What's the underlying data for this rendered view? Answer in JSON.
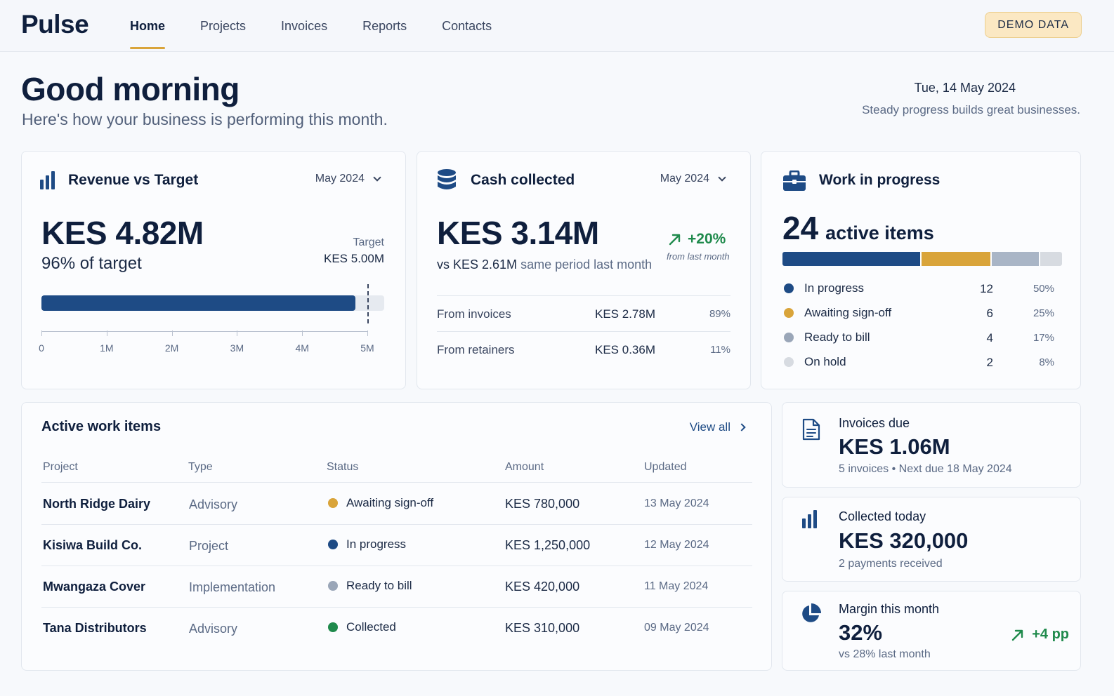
{
  "app": {
    "logo": "Pulse",
    "badge": "DEMO DATA"
  },
  "nav": [
    {
      "label": "Home",
      "active": true
    },
    {
      "label": "Projects"
    },
    {
      "label": "Invoices"
    },
    {
      "label": "Reports"
    },
    {
      "label": "Contacts"
    }
  ],
  "greeting": {
    "title": "Good morning",
    "subtitle": "Here's how your business is performing this month.",
    "date": "Tue, 14 May 2024",
    "motto": "Steady progress builds great businesses."
  },
  "revenue": {
    "title": "Revenue vs Target",
    "month": "May 2024",
    "value": "KES 4.82M",
    "pct_of_target": "96% of target",
    "target_label": "Target",
    "target_value": "KES 5.00M",
    "progress_value_m": 4.82,
    "target_m": 5.0,
    "axis_max_m": 5.3,
    "axis_ticks": [
      "0",
      "1M",
      "2M",
      "3M",
      "4M",
      "5M"
    ]
  },
  "cash": {
    "title": "Cash collected",
    "month": "May 2024",
    "value": "KES 3.14M",
    "change": "+20%",
    "change_sub": "from last month",
    "vs_value": "vs KES 2.61M",
    "vs_text": "same period last month",
    "rows": [
      {
        "label": "From invoices",
        "value": "KES 2.78M",
        "pct": "89%"
      },
      {
        "label": "From retainers",
        "value": "KES 0.36M",
        "pct": "11%"
      }
    ]
  },
  "wip": {
    "title": "Work in progress",
    "count": "24",
    "count_label": "active items",
    "items": [
      {
        "label": "In progress",
        "count": "12",
        "pct": "50%",
        "share": 50,
        "color": "#1e4b85"
      },
      {
        "label": "Awaiting sign-off",
        "count": "6",
        "pct": "25%",
        "share": 25,
        "color": "#d9a43a"
      },
      {
        "label": "Ready to bill",
        "count": "4",
        "pct": "17%",
        "share": 17,
        "color": "#a9b5c6"
      },
      {
        "label": "On hold",
        "count": "2",
        "pct": "8%",
        "share": 8,
        "color": "#d7dbe1"
      }
    ]
  },
  "work_items": {
    "title": "Active work items",
    "view_all": "View all",
    "columns": [
      "Project",
      "Type",
      "Status",
      "Amount",
      "Updated"
    ],
    "rows": [
      {
        "project": "North Ridge Dairy",
        "type": "Advisory",
        "status": "Awaiting sign-off",
        "status_color": "#d9a43a",
        "amount": "KES 780,000",
        "updated": "13 May 2024"
      },
      {
        "project": "Kisiwa Build Co.",
        "type": "Project",
        "status": "In progress",
        "status_color": "#1e4b85",
        "amount": "KES 1,250,000",
        "updated": "12 May 2024"
      },
      {
        "project": "Mwangaza Cover",
        "type": "Implementation",
        "status": "Ready to bill",
        "status_color": "#9aa6b8",
        "amount": "KES 420,000",
        "updated": "11 May 2024"
      },
      {
        "project": "Tana Distributors",
        "type": "Advisory",
        "status": "Collected",
        "status_color": "#1f8a4c",
        "amount": "KES 310,000",
        "updated": "09 May 2024"
      }
    ]
  },
  "invoices_due": {
    "title": "Invoices due",
    "value": "KES 1.06M",
    "sub": "5 invoices • Next due 18 May 2024"
  },
  "collected_today": {
    "title": "Collected today",
    "value": "KES 320,000",
    "sub": "2 payments received"
  },
  "margin": {
    "title": "Margin this month",
    "value": "32%",
    "sub": "vs 28% last month",
    "change": "+4 pp"
  },
  "colors": {
    "primary": "#1e4b85",
    "accent": "#d9a43a",
    "positive": "#1f8a4c"
  }
}
